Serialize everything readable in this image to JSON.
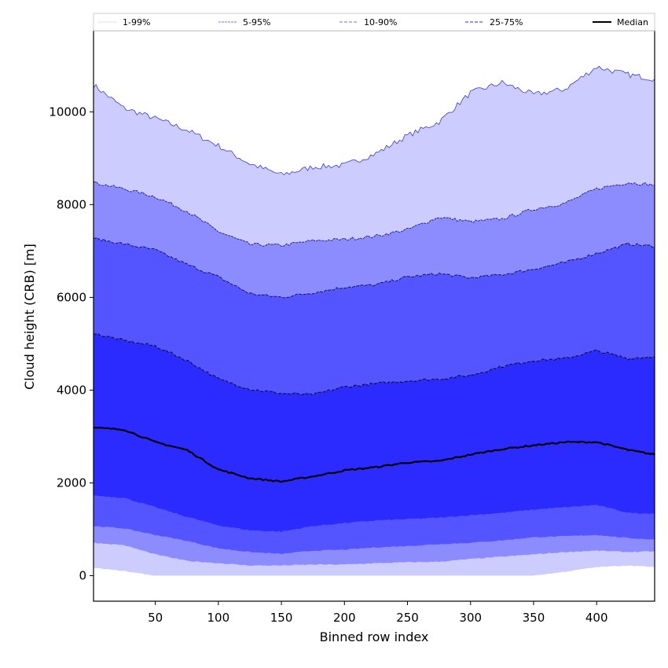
{
  "chart_data": {
    "type": "area",
    "title": "",
    "xlabel": "Binned row index",
    "ylabel": "Cloud height (CRB) [m]",
    "xlim": [
      1,
      446
    ],
    "ylim": [
      -550,
      11750
    ],
    "xticks": [
      50,
      100,
      150,
      200,
      250,
      300,
      350,
      400
    ],
    "yticks": [
      0,
      2000,
      4000,
      6000,
      8000,
      10000
    ],
    "grid": false,
    "legend": {
      "placement": "top",
      "entries": [
        {
          "label": "1-99%",
          "style": "dotted",
          "color": "#ccccff"
        },
        {
          "label": "5-95%",
          "style": "dashdot",
          "color": "#8c8cff"
        },
        {
          "label": "10-90%",
          "style": "dashed",
          "color": "#8c8cff"
        },
        {
          "label": "25-75%",
          "style": "dashed",
          "color": "#5555ff"
        },
        {
          "label": "Median",
          "style": "solid",
          "color": "#000000"
        }
      ]
    },
    "x": [
      1,
      25,
      50,
      75,
      100,
      125,
      150,
      175,
      200,
      225,
      250,
      275,
      300,
      325,
      350,
      375,
      400,
      425,
      446
    ],
    "series": [
      {
        "name": "p99",
        "values": [
          10580,
          10080,
          9860,
          9610,
          9270,
          8880,
          8640,
          8810,
          8850,
          9100,
          9490,
          9780,
          10410,
          10630,
          10370,
          10490,
          10970,
          10800,
          10710
        ]
      },
      {
        "name": "p95",
        "values": [
          8475,
          8340,
          8170,
          7860,
          7420,
          7140,
          7120,
          7220,
          7250,
          7320,
          7460,
          7730,
          7630,
          7690,
          7900,
          8030,
          8340,
          8475,
          8420
        ]
      },
      {
        "name": "p90",
        "values": [
          7270,
          7150,
          7020,
          6710,
          6440,
          6080,
          6000,
          6100,
          6220,
          6270,
          6440,
          6510,
          6420,
          6490,
          6610,
          6750,
          6950,
          7150,
          7100
        ]
      },
      {
        "name": "p75",
        "values": [
          5220,
          5070,
          4950,
          4640,
          4240,
          4020,
          3930,
          3900,
          4070,
          4140,
          4200,
          4240,
          4320,
          4510,
          4640,
          4680,
          4850,
          4680,
          4730
        ]
      },
      {
        "name": "Median",
        "values": [
          3190,
          3150,
          2880,
          2710,
          2290,
          2100,
          2030,
          2140,
          2270,
          2340,
          2440,
          2470,
          2610,
          2730,
          2810,
          2880,
          2880,
          2710,
          2610
        ]
      },
      {
        "name": "p25",
        "values": [
          1730,
          1680,
          1475,
          1270,
          1085,
          980,
          950,
          1070,
          1135,
          1190,
          1220,
          1250,
          1305,
          1355,
          1425,
          1475,
          1525,
          1355,
          1340
        ]
      },
      {
        "name": "p10",
        "values": [
          1070,
          1020,
          880,
          750,
          590,
          510,
          470,
          540,
          560,
          610,
          640,
          680,
          710,
          760,
          830,
          850,
          880,
          810,
          780
        ]
      },
      {
        "name": "p5",
        "values": [
          710,
          660,
          460,
          320,
          270,
          220,
          220,
          240,
          240,
          270,
          290,
          300,
          360,
          410,
          460,
          510,
          540,
          510,
          525
        ]
      },
      {
        "name": "p1",
        "values": [
          170,
          100,
          0,
          0,
          0,
          0,
          0,
          0,
          0,
          0,
          0,
          0,
          0,
          0,
          0,
          85,
          185,
          220,
          185
        ]
      }
    ],
    "bands": [
      {
        "name": "1-99%",
        "lower": "p1",
        "upper": "p99",
        "color": "#ccccff"
      },
      {
        "name": "5-95%",
        "lower": "p5",
        "upper": "p95",
        "color": "#8c8cff"
      },
      {
        "name": "10-90%",
        "lower": "p10",
        "upper": "p90",
        "color": "#5555ff"
      },
      {
        "name": "25-75%",
        "lower": "p25",
        "upper": "p75",
        "color": "#2b2bff"
      }
    ]
  }
}
